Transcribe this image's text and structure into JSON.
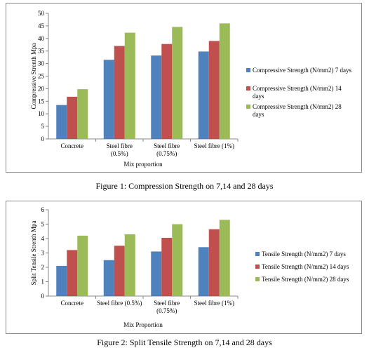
{
  "chart_data": [
    {
      "type": "bar",
      "title": "",
      "xlabel": "Mix proportion",
      "ylabel": "Compressive Strenth Mpa",
      "ylim": [
        0,
        50
      ],
      "yticks": [
        0,
        5,
        10,
        15,
        20,
        25,
        30,
        35,
        40,
        45,
        50
      ],
      "categories": [
        [
          "Concrete"
        ],
        [
          "Steel fibre",
          "(0.5%)"
        ],
        [
          "Steel fibre",
          "(0.75%)"
        ],
        [
          "Steel fibre (1%)"
        ]
      ],
      "series": [
        {
          "name": [
            "Compressive Strength (N/mm2) 7 days"
          ],
          "color": "#4f81bd",
          "values": [
            13.5,
            31.5,
            33.2,
            34.8
          ]
        },
        {
          "name": [
            "Compressive Strength (N/mm2) 14",
            "days"
          ],
          "color": "#c0504d",
          "values": [
            16.8,
            37.0,
            37.8,
            39.0
          ]
        },
        {
          "name": [
            "Compressive Strength (N/mm2) 28",
            "days"
          ],
          "color": "#9bbb59",
          "values": [
            19.8,
            42.3,
            44.6,
            46.0
          ]
        }
      ],
      "grid": false,
      "legend": "right"
    },
    {
      "type": "bar",
      "title": "",
      "xlabel": "Mix Proportion",
      "ylabel": "Split Tensile Strenth Mpa",
      "ylim": [
        0,
        6
      ],
      "yticks": [
        0,
        1,
        2,
        3,
        4,
        5,
        6
      ],
      "categories": [
        [
          "Concrete"
        ],
        [
          "Steel fibre (0.5%)"
        ],
        [
          "Steel fibre",
          "(0.75%)"
        ],
        [
          "Steel fibre (1%)"
        ]
      ],
      "series": [
        {
          "name": [
            "Tensile Strength (N/mm2) 7 days"
          ],
          "color": "#4f81bd",
          "values": [
            2.1,
            2.5,
            3.1,
            3.4
          ]
        },
        {
          "name": [
            "Tensile Strength (N/mm2) 14 days"
          ],
          "color": "#c0504d",
          "values": [
            3.2,
            3.5,
            4.05,
            4.65
          ]
        },
        {
          "name": [
            "Tensile Strength (N/mm2) 28 days"
          ],
          "color": "#9bbb59",
          "values": [
            4.2,
            4.3,
            5.0,
            5.3
          ]
        }
      ],
      "grid": false,
      "legend": "right"
    }
  ],
  "captions": {
    "figure1": "Figure 1: Compression Strength on 7,14 and 28 days",
    "figure2": "Figure 2: Split Tensile Strength on 7,14 and 28 days"
  }
}
